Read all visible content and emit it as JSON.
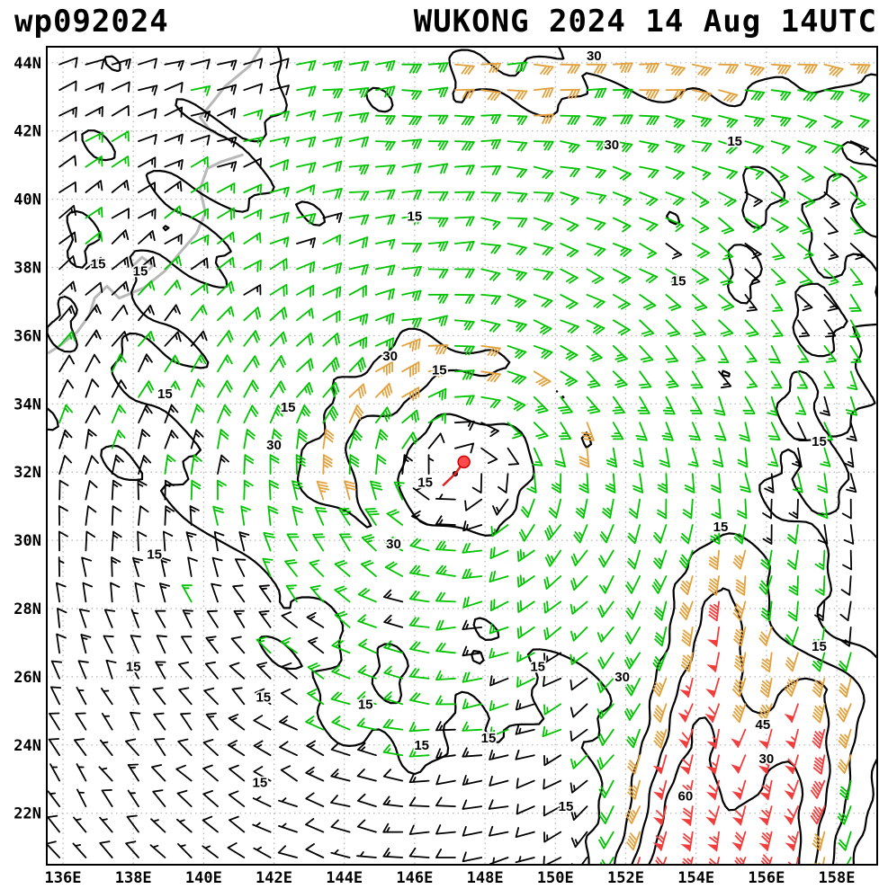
{
  "header": {
    "storm_id": "wp092024",
    "title": "WUKONG 2024 14 Aug 14UTC"
  },
  "colors": {
    "frame": "#000000",
    "grid": "#b5b5b5",
    "coast": "#b8b8b8",
    "contour": "#000000",
    "label_halo": "#ffffff",
    "storm_marker": "#fb4b4b",
    "storm_marker_edge": "#d00000",
    "storm_track": "#e02020"
  },
  "axes": {
    "x_ticks": [
      {
        "lon": 136,
        "label": "136E"
      },
      {
        "lon": 138,
        "label": "138E"
      },
      {
        "lon": 140,
        "label": "140E"
      },
      {
        "lon": 142,
        "label": "142E"
      },
      {
        "lon": 144,
        "label": "144E"
      },
      {
        "lon": 146,
        "label": "146E"
      },
      {
        "lon": 148,
        "label": "148E"
      },
      {
        "lon": 150,
        "label": "150E"
      },
      {
        "lon": 152,
        "label": "152E"
      },
      {
        "lon": 154,
        "label": "154E"
      },
      {
        "lon": 156,
        "label": "156E"
      },
      {
        "lon": 158,
        "label": "158E"
      }
    ],
    "y_ticks": [
      {
        "lat": 44,
        "label": "44N"
      },
      {
        "lat": 42,
        "label": "42N"
      },
      {
        "lat": 40,
        "label": "40N"
      },
      {
        "lat": 38,
        "label": "38N"
      },
      {
        "lat": 36,
        "label": "36N"
      },
      {
        "lat": 34,
        "label": "34N"
      },
      {
        "lat": 32,
        "label": "32N"
      },
      {
        "lat": 30,
        "label": "30N"
      },
      {
        "lat": 28,
        "label": "28N"
      },
      {
        "lat": 26,
        "label": "26N"
      },
      {
        "lat": 24,
        "label": "24N"
      },
      {
        "lat": 22,
        "label": "22N"
      }
    ]
  },
  "chart_data": {
    "type": "heatmap",
    "subtype": "wind-barb-isotach-map",
    "title": "WUKONG 2024 14 Aug 14UTC",
    "field": "wind_speed_kt",
    "lon_range": [
      135.54,
      159.15
    ],
    "lat_range": [
      20.49,
      44.47
    ],
    "grid_step_deg": 2,
    "contour_levels": [
      15,
      30,
      45,
      60
    ],
    "color_scale": [
      {
        "min": 0,
        "max": 15,
        "color": "#000000"
      },
      {
        "min": 15,
        "max": 30,
        "color": "#00c400"
      },
      {
        "min": 30,
        "max": 45,
        "color": "#e2a13c"
      },
      {
        "min": 45,
        "max": 999,
        "color": "#f23d3d"
      }
    ],
    "storm_center": {
      "lon": 147.4,
      "lat": 32.3
    },
    "storm_track": [
      [
        146.8,
        31.6
      ],
      [
        147.15,
        31.95
      ],
      [
        147.4,
        32.3
      ]
    ],
    "wind_model": {
      "background": {
        "u": -3,
        "v": 1
      },
      "vortices": [
        {
          "lon": 147.4,
          "lat": 32.3,
          "vmax": 27,
          "rmax": 3.0,
          "decay": 0.65
        }
      ],
      "jets": [
        {
          "from": [
            159.0,
            44.8
          ],
          "to": [
            144.0,
            43.2
          ],
          "width": 2.5,
          "peak": 25,
          "taper": 0.5
        },
        {
          "from": [
            153.3,
            19.5
          ],
          "to": [
            155.0,
            29.0
          ],
          "width": 1.7,
          "peak": 70,
          "taper": 0.6
        },
        {
          "from": [
            156.0,
            19.5
          ],
          "to": [
            157.5,
            25.5
          ],
          "width": 1.5,
          "peak": 70,
          "taper": 0.5
        }
      ],
      "boosts": [
        {
          "lon": 143.6,
          "lat": 31.8,
          "sx": 1.9,
          "sy": 1.7,
          "amp": 0.4
        },
        {
          "lon": 145.5,
          "lat": 34.6,
          "sx": 1.6,
          "sy": 1.4,
          "amp": 0.35
        },
        {
          "lon": 145.0,
          "lat": 24.5,
          "sx": 4.5,
          "sy": 2.0,
          "amp": 0.5
        }
      ],
      "noise": {
        "amp": 2.4
      },
      "barb_grid": {
        "lon_start": 135.9,
        "lat_start": 20.7,
        "step": 0.75
      },
      "jitter": {
        "dir_deg": 8,
        "speed_kt": 2
      }
    },
    "contour_labels": [
      {
        "lon": 151.1,
        "lat": 44.2,
        "text": "30"
      },
      {
        "lon": 151.6,
        "lat": 41.6,
        "text": "30"
      },
      {
        "lon": 155.1,
        "lat": 41.7,
        "text": "15"
      },
      {
        "lon": 146.0,
        "lat": 39.5,
        "text": "15"
      },
      {
        "lon": 137.0,
        "lat": 38.1,
        "text": "15"
      },
      {
        "lon": 138.2,
        "lat": 37.9,
        "text": "15"
      },
      {
        "lon": 153.5,
        "lat": 37.6,
        "text": "15"
      },
      {
        "lon": 145.3,
        "lat": 35.4,
        "text": "30"
      },
      {
        "lon": 146.7,
        "lat": 35.0,
        "text": "15"
      },
      {
        "lon": 138.9,
        "lat": 34.3,
        "text": "15"
      },
      {
        "lon": 142.4,
        "lat": 33.9,
        "text": "15"
      },
      {
        "lon": 142.0,
        "lat": 32.8,
        "text": "30"
      },
      {
        "lon": 157.5,
        "lat": 32.9,
        "text": "15"
      },
      {
        "lon": 146.3,
        "lat": 31.7,
        "text": "15"
      },
      {
        "lon": 138.6,
        "lat": 29.6,
        "text": "15"
      },
      {
        "lon": 145.4,
        "lat": 29.9,
        "text": "30"
      },
      {
        "lon": 154.7,
        "lat": 30.4,
        "text": "15"
      },
      {
        "lon": 138.0,
        "lat": 26.3,
        "text": "15"
      },
      {
        "lon": 149.5,
        "lat": 26.3,
        "text": "15"
      },
      {
        "lon": 151.9,
        "lat": 26.0,
        "text": "30"
      },
      {
        "lon": 141.7,
        "lat": 25.4,
        "text": "15"
      },
      {
        "lon": 144.6,
        "lat": 25.2,
        "text": "15"
      },
      {
        "lon": 157.5,
        "lat": 26.9,
        "text": "15"
      },
      {
        "lon": 155.9,
        "lat": 24.6,
        "text": "45"
      },
      {
        "lon": 146.2,
        "lat": 24.0,
        "text": "15"
      },
      {
        "lon": 148.1,
        "lat": 24.2,
        "text": "15"
      },
      {
        "lon": 156.0,
        "lat": 23.6,
        "text": "30"
      },
      {
        "lon": 141.6,
        "lat": 22.9,
        "text": "15"
      },
      {
        "lon": 153.7,
        "lat": 22.5,
        "text": "60"
      },
      {
        "lon": 150.3,
        "lat": 22.2,
        "text": "15"
      }
    ]
  },
  "map": {
    "coastlines": [
      [
        [
          141.8,
          45.0
        ],
        [
          141.6,
          44.4
        ],
        [
          141.3,
          43.9
        ],
        [
          140.6,
          43.3
        ],
        [
          140.3,
          42.9
        ],
        [
          139.9,
          42.4
        ],
        [
          140.2,
          42.0
        ],
        [
          140.6,
          41.8
        ]
      ],
      [
        [
          141.1,
          41.3
        ],
        [
          140.5,
          41.1
        ],
        [
          140.1,
          40.9
        ],
        [
          139.9,
          40.3
        ],
        [
          140.05,
          39.6
        ],
        [
          139.8,
          39.0
        ],
        [
          139.3,
          38.4
        ],
        [
          138.9,
          37.9
        ],
        [
          138.3,
          37.4
        ],
        [
          137.6,
          37.1
        ],
        [
          137.25,
          37.45
        ],
        [
          136.9,
          37.1
        ],
        [
          136.75,
          36.6
        ],
        [
          136.4,
          36.1
        ],
        [
          135.9,
          35.7
        ],
        [
          135.6,
          35.5
        ]
      ],
      [
        [
          138.25,
          38.3
        ],
        [
          138.55,
          38.05
        ],
        [
          138.3,
          37.8
        ],
        [
          138.0,
          38.05
        ],
        [
          138.25,
          38.3
        ]
      ]
    ]
  }
}
